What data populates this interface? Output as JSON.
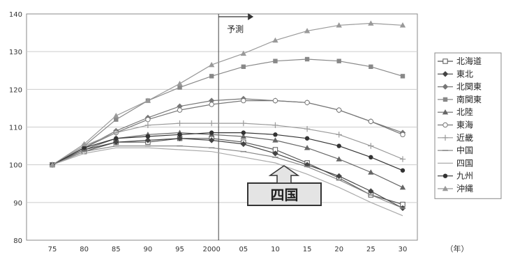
{
  "chart_data": {
    "type": "line",
    "x_unit": "（年）",
    "x": [
      "75",
      "80",
      "85",
      "90",
      "95",
      "2000",
      "05",
      "10",
      "15",
      "20",
      "25",
      "30"
    ],
    "ylim": [
      80,
      140
    ],
    "yticks": [
      80,
      90,
      100,
      110,
      120,
      130,
      140
    ],
    "grid": true,
    "legend_position": "right",
    "forecast_label": "予測",
    "forecast_from": "2000",
    "highlight_label": "四国",
    "highlight_series": "四国",
    "series": [
      {
        "name": "北海道",
        "marker": "square-open",
        "color": "#555555",
        "values": [
          100,
          103.5,
          106,
          106,
          107,
          107,
          106,
          104,
          100.5,
          96.5,
          92,
          89.5
        ]
      },
      {
        "name": "東北",
        "marker": "diamond-filled",
        "color": "#444444",
        "values": [
          100,
          104,
          106,
          106.5,
          107,
          106.5,
          105.5,
          103,
          100,
          97,
          93,
          88.5
        ]
      },
      {
        "name": "北関東",
        "marker": "diamond-filled",
        "color": "#777777",
        "values": [
          100,
          104.5,
          109,
          112.5,
          115.5,
          117,
          117.5,
          117,
          116.5,
          114.5,
          111.5,
          108.5
        ]
      },
      {
        "name": "南関東",
        "marker": "square-filled",
        "color": "#888888",
        "values": [
          100,
          105,
          112,
          117,
          120.5,
          123.5,
          126,
          127.5,
          128,
          127.5,
          126,
          123.5
        ]
      },
      {
        "name": "北陸",
        "marker": "triangle-filled",
        "color": "#666666",
        "values": [
          100,
          104,
          107,
          108,
          108.5,
          108,
          107.5,
          106.5,
          104.5,
          101.5,
          98,
          94
        ]
      },
      {
        "name": "東海",
        "marker": "circle-open",
        "color": "#777777",
        "values": [
          100,
          104.5,
          108.5,
          112,
          114.5,
          116,
          117,
          117,
          116.5,
          114.5,
          111.5,
          108
        ]
      },
      {
        "name": "近畿",
        "marker": "plus",
        "color": "#999999",
        "values": [
          100,
          105,
          108.5,
          110.5,
          111,
          111,
          111,
          110.5,
          109.5,
          108,
          105,
          101.5
        ]
      },
      {
        "name": "中国",
        "marker": "dash",
        "color": "#888888",
        "values": [
          100,
          103.5,
          105,
          105,
          105,
          104.5,
          103.5,
          102,
          99.5,
          96,
          92,
          88.5
        ]
      },
      {
        "name": "四国",
        "marker": "none",
        "color": "#aaaaaa",
        "values": [
          100,
          103,
          104.5,
          104.5,
          104,
          103.5,
          102,
          100.5,
          97.5,
          94,
          90,
          86.5
        ]
      },
      {
        "name": "九州",
        "marker": "circle-filled",
        "color": "#333333",
        "values": [
          100,
          104.5,
          107,
          107.5,
          108,
          108.5,
          108.5,
          108,
          107,
          105,
          102,
          98.5
        ]
      },
      {
        "name": "沖縄",
        "marker": "triangle-filled",
        "color": "#999999",
        "values": [
          100,
          105.5,
          113,
          117,
          121.5,
          126.5,
          129.5,
          133,
          135.5,
          137,
          137.5,
          137
        ]
      }
    ]
  }
}
